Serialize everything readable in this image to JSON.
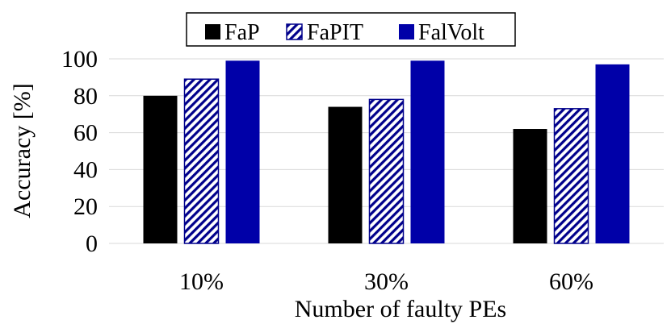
{
  "chart_data": {
    "type": "bar",
    "categories": [
      "10%",
      "30%",
      "60%"
    ],
    "series": [
      {
        "name": "FaP",
        "values": [
          80,
          74,
          62
        ],
        "color": "#000000",
        "pattern": "solid"
      },
      {
        "name": "FaPIT",
        "values": [
          89,
          78,
          73
        ],
        "color": "#00008b",
        "pattern": "diagonal-hatch"
      },
      {
        "name": "FalVolt",
        "values": [
          99,
          99,
          97
        ],
        "color": "#0000a8",
        "pattern": "solid"
      }
    ],
    "title": "",
    "xlabel": "Number of faulty PEs",
    "ylabel": "Accuracy [%]",
    "ylim": [
      0,
      100
    ],
    "yticks": [
      0,
      20,
      40,
      60,
      80,
      100
    ],
    "grid": true,
    "legend_position": "top-center"
  }
}
